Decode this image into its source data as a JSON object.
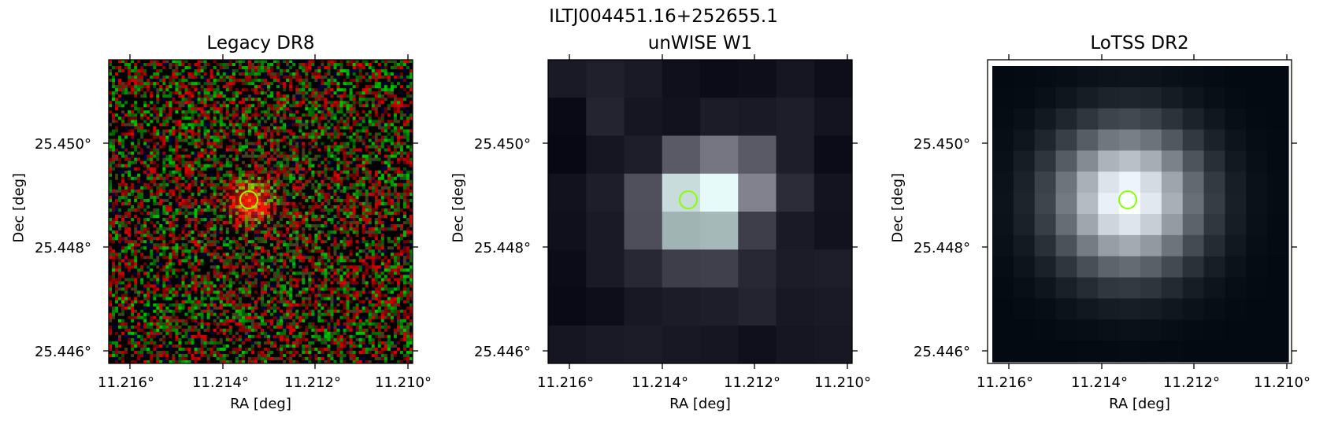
{
  "figure_title": "ILTJ004451.16+252655.1",
  "axes": {
    "x_label": "RA [deg]",
    "y_label": "Dec [deg]",
    "x_ticks": [
      "11.216°",
      "11.214°",
      "11.212°",
      "11.210°"
    ],
    "y_ticks": [
      "25.450°",
      "25.448°",
      "25.446°"
    ]
  },
  "panels": [
    {
      "title": "Legacy DR8",
      "style": "rgb-noise"
    },
    {
      "title": "unWISE W1",
      "style": "coarse-grey"
    },
    {
      "title": "LoTSS DR2",
      "style": "fine-grey"
    }
  ],
  "marker": {
    "color": "#88ff00",
    "shape": "circle"
  }
}
